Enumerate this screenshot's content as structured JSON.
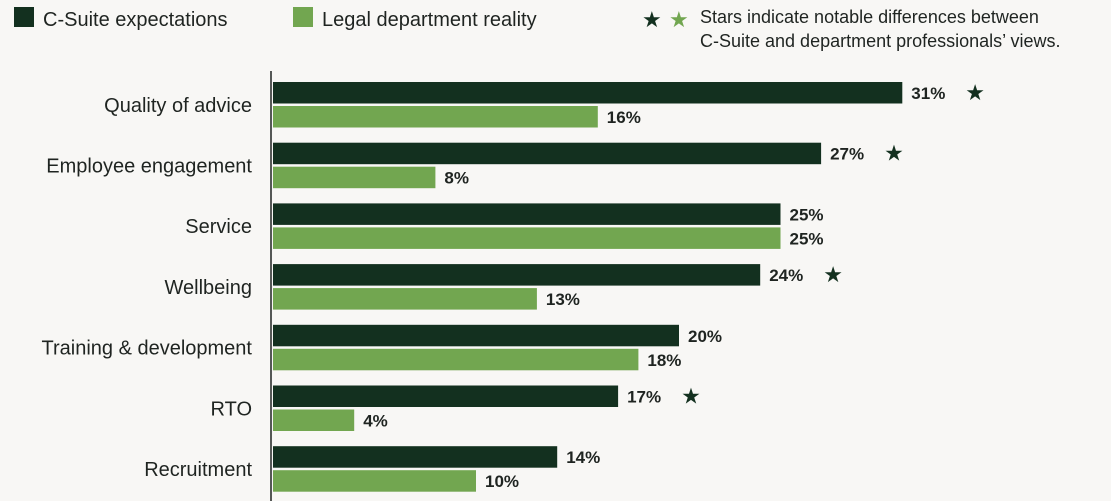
{
  "colors": {
    "csuite": "#13301f",
    "legal": "#72a650",
    "axis": "#1f2421",
    "text": "#1f2421",
    "background": "#f8f7f5"
  },
  "legend": {
    "csuite_label": "C-Suite expectations",
    "legal_label": "Legal department reality",
    "star_note_line1": "Stars indicate notable differences between",
    "star_note_line2": "C-Suite and department professionals’ views.",
    "star_glyph": "★"
  },
  "chart_data": {
    "type": "bar",
    "orientation": "horizontal",
    "categories": [
      "Quality of advice",
      "Employee engagement",
      "Service",
      "Wellbeing",
      "Training & development",
      "RTO",
      "Recruitment"
    ],
    "series": [
      {
        "name": "C-Suite expectations",
        "values": [
          31,
          27,
          25,
          24,
          20,
          17,
          14
        ],
        "labels": [
          "31%",
          "27%",
          "25%",
          "24%",
          "20%",
          "17%",
          "14%"
        ]
      },
      {
        "name": "Legal department reality",
        "values": [
          16,
          8,
          25,
          13,
          18,
          4,
          10
        ],
        "labels": [
          "16%",
          "8%",
          "25%",
          "13%",
          "18%",
          "4%",
          "10%"
        ]
      }
    ],
    "notable_difference": [
      true,
      true,
      false,
      true,
      false,
      true,
      false
    ],
    "xlim": [
      0,
      40
    ],
    "xlabel": "",
    "ylabel": "",
    "title": "",
    "legend_position": "top",
    "grid": false
  }
}
